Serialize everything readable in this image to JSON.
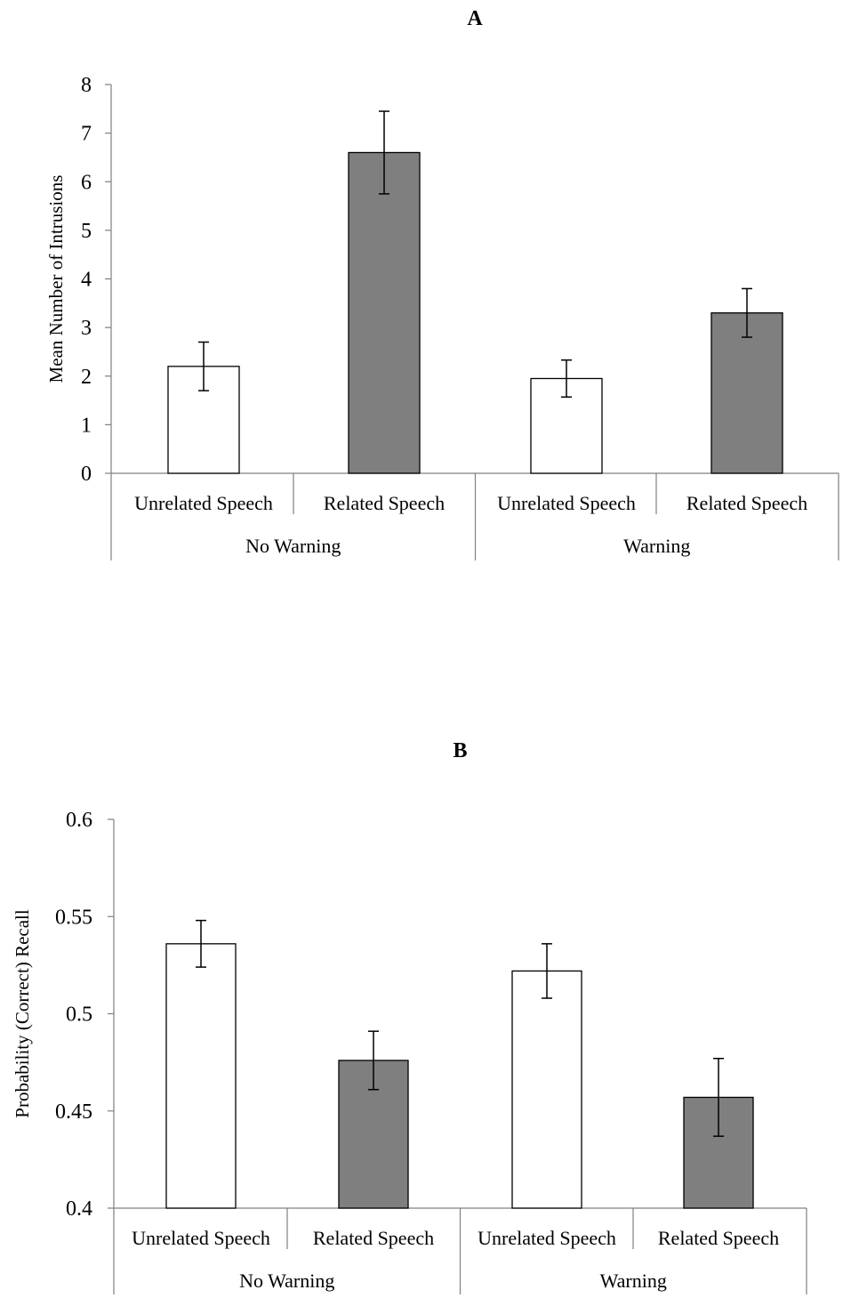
{
  "chart_data": [
    {
      "type": "bar",
      "panel": "A",
      "ylabel": "Mean Number of Intrusions",
      "ylim": [
        0,
        8
      ],
      "yticks": [
        "0",
        "1",
        "2",
        "3",
        "4",
        "5",
        "6",
        "7",
        "8"
      ],
      "groups": [
        "No Warning",
        "Warning"
      ],
      "categories": [
        "Unrelated Speech",
        "Related Speech",
        "Unrelated Speech",
        "Related Speech"
      ],
      "values": [
        2.2,
        6.6,
        1.95,
        3.3
      ],
      "errors": [
        0.5,
        0.85,
        0.38,
        0.5
      ],
      "colors": [
        "#ffffff",
        "#7f7f7f",
        "#ffffff",
        "#7f7f7f"
      ]
    },
    {
      "type": "bar",
      "panel": "B",
      "ylabel": "Probability (Correct) Recall",
      "ylim": [
        0.4,
        0.6
      ],
      "yticks": [
        "0.4",
        "0.45",
        "0.5",
        "0.55",
        "0.6"
      ],
      "groups": [
        "No Warning",
        "Warning"
      ],
      "categories": [
        "Unrelated Speech",
        "Related Speech",
        "Unrelated Speech",
        "Related Speech"
      ],
      "values": [
        0.536,
        0.476,
        0.522,
        0.457
      ],
      "errors": [
        0.012,
        0.015,
        0.014,
        0.02
      ],
      "colors": [
        "#ffffff",
        "#7f7f7f",
        "#ffffff",
        "#7f7f7f"
      ]
    }
  ]
}
